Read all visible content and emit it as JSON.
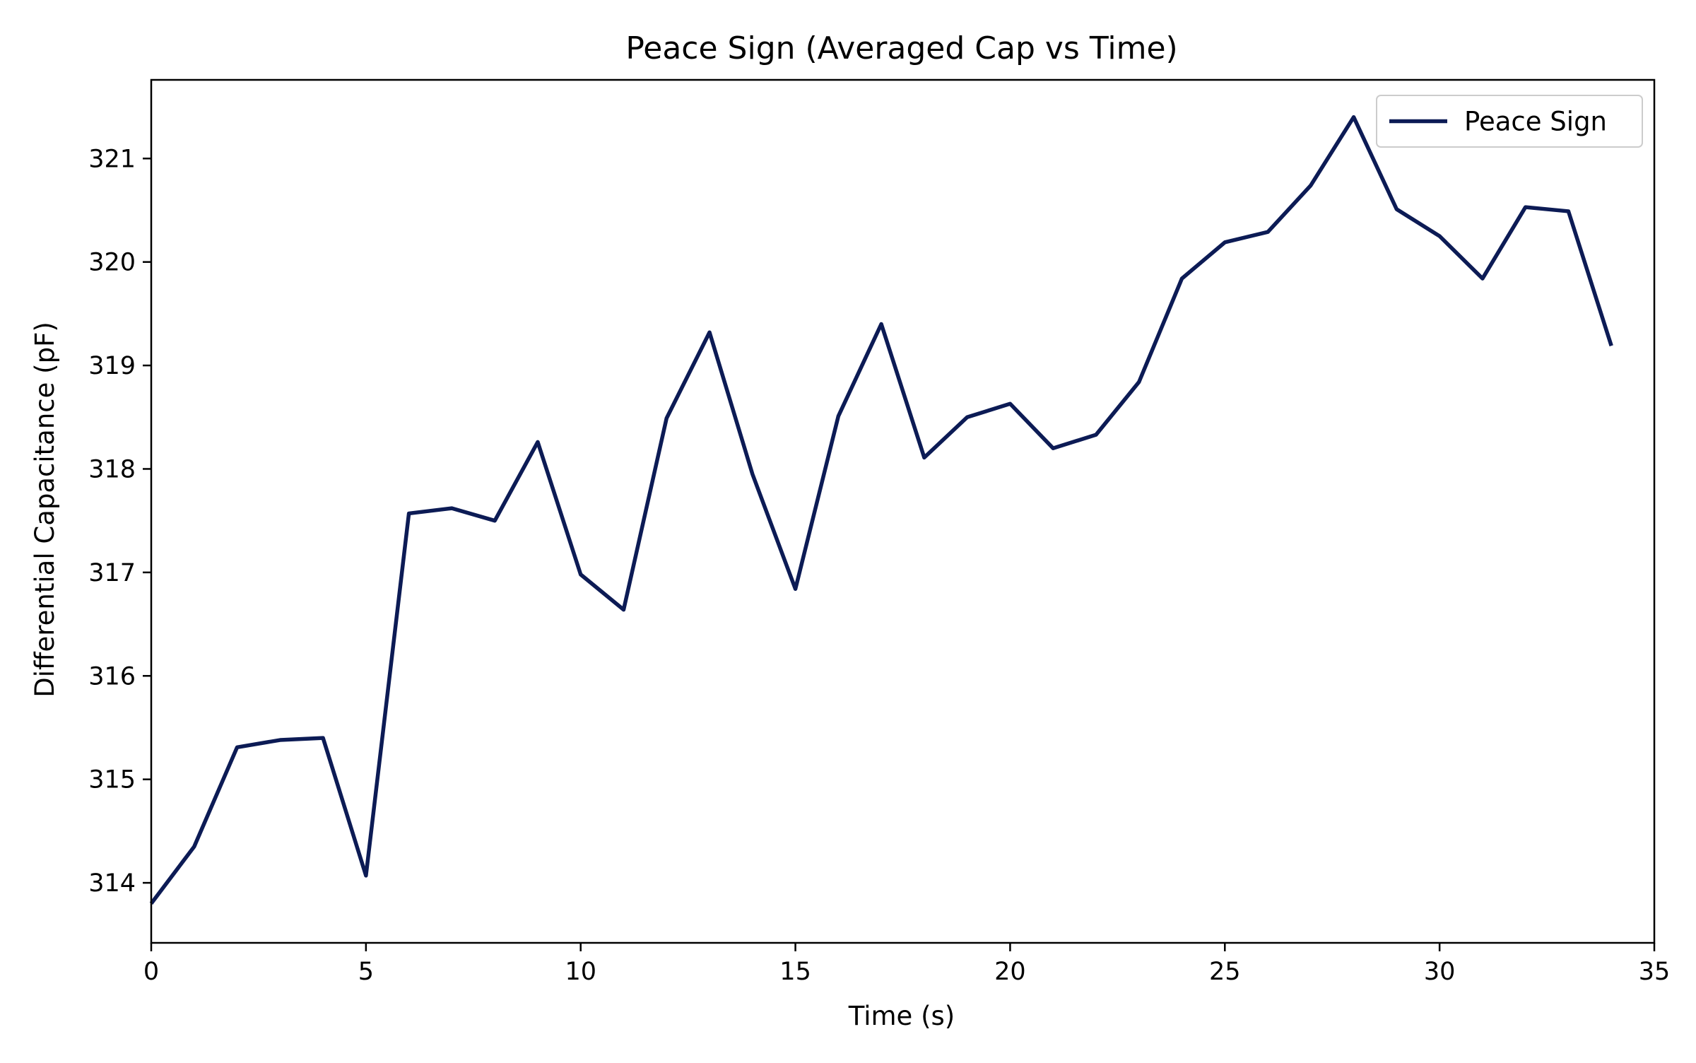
{
  "chart_data": {
    "type": "line",
    "title": "Peace Sign (Averaged Cap vs Time)",
    "xlabel": "Time (s)",
    "ylabel": "Differential Capacitance (pF)",
    "xlim": [
      0,
      35
    ],
    "ylim": [
      313.42,
      321.76
    ],
    "xticks": [
      0,
      5,
      10,
      15,
      20,
      25,
      30,
      35
    ],
    "yticks": [
      314,
      315,
      316,
      317,
      318,
      319,
      320,
      321
    ],
    "grid": false,
    "legend_position": "top-right",
    "series": [
      {
        "name": "Peace Sign",
        "color": "#0c1b55",
        "x": [
          0,
          1,
          2,
          3,
          4,
          5,
          6,
          7,
          8,
          9,
          10,
          11,
          12,
          13,
          14,
          15,
          16,
          17,
          18,
          19,
          20,
          21,
          22,
          23,
          24,
          25,
          26,
          27,
          28,
          29,
          30,
          31,
          32,
          33,
          34
        ],
        "y": [
          313.8,
          314.35,
          315.31,
          315.38,
          315.4,
          314.07,
          317.57,
          317.62,
          317.5,
          318.26,
          316.98,
          316.64,
          318.49,
          319.32,
          317.95,
          316.84,
          318.51,
          319.4,
          318.11,
          318.5,
          318.63,
          318.2,
          318.33,
          318.84,
          319.84,
          320.19,
          320.29,
          320.74,
          321.4,
          320.51,
          320.25,
          319.84,
          320.53,
          320.49,
          319.19
        ]
      }
    ]
  }
}
